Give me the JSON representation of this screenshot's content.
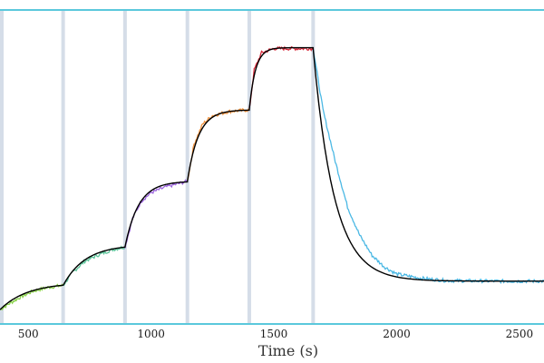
{
  "chart_data": {
    "type": "line",
    "xlabel": "Time (s)",
    "xlim": [
      385,
      2600
    ],
    "ylim": [
      -0.05,
      1.05
    ],
    "x_ticks": [
      500,
      1000,
      1500,
      2000,
      2500
    ],
    "x_tick_labels": [
      "500",
      "1000",
      "1500",
      "2000",
      "2500"
    ],
    "grid": false,
    "frame_color": "#5bc8dc",
    "injection_marker_color": "#d5dde8",
    "injection_markers_x": [
      385,
      642,
      894,
      1148,
      1400,
      1660
    ],
    "series": [
      {
        "role": "data",
        "color": "#8ad34a",
        "x_range": [
          385,
          642
        ],
        "points": [
          [
            385,
            0.0
          ],
          [
            420,
            0.02
          ],
          [
            470,
            0.045
          ],
          [
            520,
            0.065
          ],
          [
            580,
            0.078
          ],
          [
            642,
            0.085
          ]
        ]
      },
      {
        "role": "data",
        "color": "#5cc49a",
        "x_range": [
          642,
          894
        ],
        "points": [
          [
            642,
            0.085
          ],
          [
            680,
            0.13
          ],
          [
            730,
            0.17
          ],
          [
            780,
            0.19
          ],
          [
            840,
            0.21
          ],
          [
            894,
            0.22
          ]
        ]
      },
      {
        "role": "data",
        "color": "#9b63dd",
        "x_range": [
          894,
          1148
        ],
        "points": [
          [
            894,
            0.22
          ],
          [
            925,
            0.32
          ],
          [
            960,
            0.38
          ],
          [
            1000,
            0.41
          ],
          [
            1060,
            0.43
          ],
          [
            1148,
            0.45
          ]
        ]
      },
      {
        "role": "data",
        "color": "#f0913c",
        "x_range": [
          1148,
          1400
        ],
        "points": [
          [
            1148,
            0.45
          ],
          [
            1175,
            0.58
          ],
          [
            1210,
            0.65
          ],
          [
            1250,
            0.68
          ],
          [
            1320,
            0.695
          ],
          [
            1400,
            0.7
          ]
        ]
      },
      {
        "role": "data",
        "color": "#d8293a",
        "x_range": [
          1400,
          1660
        ],
        "points": [
          [
            1400,
            0.7
          ],
          [
            1420,
            0.84
          ],
          [
            1450,
            0.9
          ],
          [
            1500,
            0.915
          ],
          [
            1580,
            0.915
          ],
          [
            1660,
            0.915
          ]
        ]
      },
      {
        "role": "data",
        "color": "#4bb8e4",
        "x_range": [
          1660,
          2600
        ],
        "points": [
          [
            1660,
            0.915
          ],
          [
            1700,
            0.7
          ],
          [
            1750,
            0.52
          ],
          [
            1800,
            0.36
          ],
          [
            1850,
            0.26
          ],
          [
            1900,
            0.19
          ],
          [
            1950,
            0.15
          ],
          [
            2000,
            0.125
          ],
          [
            2100,
            0.11
          ],
          [
            2200,
            0.102
          ],
          [
            2400,
            0.1
          ],
          [
            2600,
            0.1
          ]
        ]
      }
    ],
    "fit": {
      "role": "fit",
      "color": "#000000",
      "segments": [
        {
          "t0": 385,
          "t1": 642,
          "y0": 0.0,
          "yinf": 0.095,
          "tau": 110
        },
        {
          "t0": 642,
          "t1": 894,
          "y0": 0.085,
          "yinf": 0.228,
          "tau": 90
        },
        {
          "t0": 894,
          "t1": 1148,
          "y0": 0.22,
          "yinf": 0.45,
          "tau": 55
        },
        {
          "t0": 1148,
          "t1": 1400,
          "y0": 0.45,
          "yinf": 0.7,
          "tau": 45
        },
        {
          "t0": 1400,
          "t1": 1660,
          "y0": 0.7,
          "yinf": 0.918,
          "tau": 25
        },
        {
          "t0": 1660,
          "t1": 2600,
          "y0": 0.915,
          "yinf": 0.1,
          "tau": 85
        }
      ]
    }
  }
}
